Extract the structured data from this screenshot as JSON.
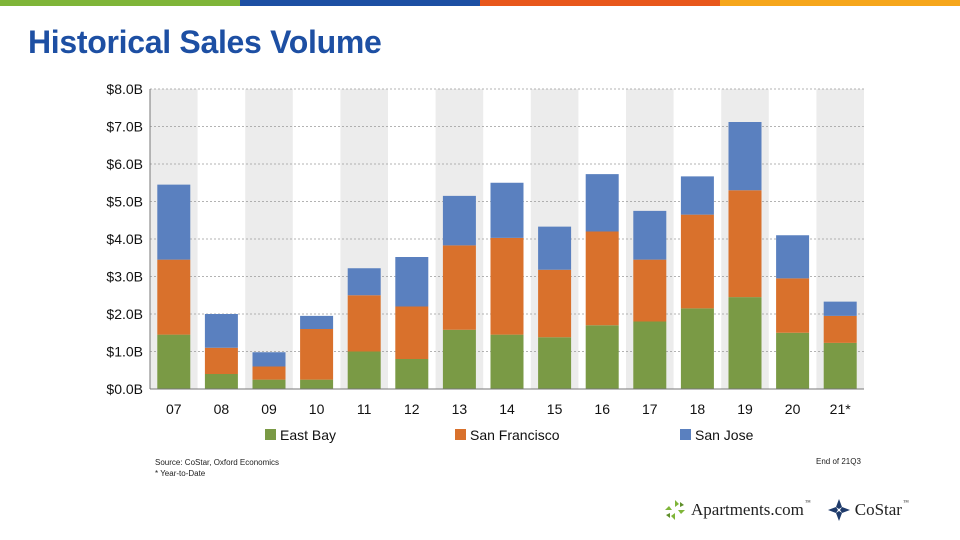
{
  "header": {
    "title": "Historical Sales Volume",
    "top_bar_colors": [
      "#7fb539",
      "#1d4fa3",
      "#e8571b",
      "#f6a61b"
    ]
  },
  "footer": {
    "source_line": "Source: CoStar, Oxford Economics",
    "note_line": "* Year-to-Date",
    "period_label": "End of 21Q3"
  },
  "logos": {
    "apartments": "Apartments.com",
    "costar": "CoStar",
    "tm": "™"
  },
  "chart_data": {
    "type": "bar",
    "stacked": true,
    "title": "Historical Sales Volume",
    "xlabel": "",
    "ylabel": "",
    "ylim": [
      0,
      8
    ],
    "yticks": [
      "$0.0B",
      "$1.0B",
      "$2.0B",
      "$3.0B",
      "$4.0B",
      "$5.0B",
      "$6.0B",
      "$7.0B",
      "$8.0B"
    ],
    "ytick_values": [
      0,
      1,
      2,
      3,
      4,
      5,
      6,
      7,
      8
    ],
    "grid": true,
    "legend_position": "bottom",
    "categories": [
      "07",
      "08",
      "09",
      "10",
      "11",
      "12",
      "13",
      "14",
      "15",
      "16",
      "17",
      "18",
      "19",
      "20",
      "21*"
    ],
    "series": [
      {
        "name": "East Bay",
        "color": "#7a9a45",
        "values": [
          1.45,
          0.4,
          0.25,
          0.25,
          1.0,
          0.8,
          1.58,
          1.45,
          1.38,
          1.7,
          1.8,
          2.15,
          2.45,
          1.5,
          1.23
        ]
      },
      {
        "name": "San Francisco",
        "color": "#d9712c",
        "values": [
          2.0,
          0.7,
          0.35,
          1.35,
          1.5,
          1.4,
          2.25,
          2.58,
          1.8,
          2.5,
          1.65,
          2.5,
          2.85,
          1.45,
          0.72
        ]
      },
      {
        "name": "San Jose",
        "color": "#5a80bf",
        "values": [
          2.0,
          0.9,
          0.38,
          0.35,
          0.72,
          1.32,
          1.32,
          1.47,
          1.15,
          1.53,
          1.3,
          1.02,
          1.82,
          1.15,
          0.38
        ]
      }
    ]
  }
}
